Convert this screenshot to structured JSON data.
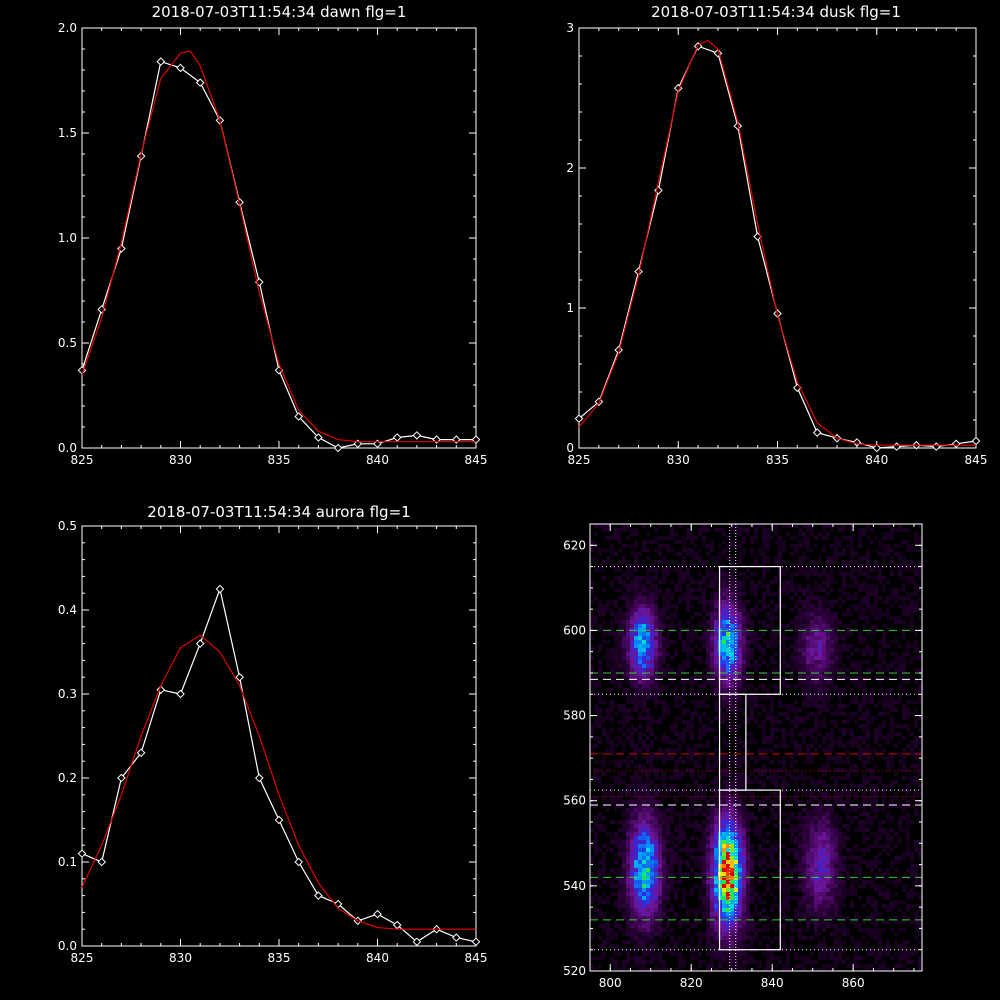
{
  "colors": {
    "background": "#000000",
    "axis": "#ffffff",
    "observed": "#ffffff",
    "fit": "#dd0000",
    "green_line": "#33cc33",
    "red_line": "#cc0000",
    "white_line": "#ffffff"
  },
  "chart_data": [
    {
      "type": "line",
      "title": "2018-07-03T11:54:34 dawn flg=1",
      "xlim": [
        825,
        845
      ],
      "ylim": [
        0,
        2.0
      ],
      "xticks": [
        "825",
        "830",
        "835",
        "840",
        "845"
      ],
      "yticks": [
        "0.0",
        "0.5",
        "1.0",
        "1.5",
        "2.0"
      ],
      "series": [
        {
          "role": "observed",
          "markers": "diamond",
          "x": [
            825,
            826,
            827,
            828,
            829,
            830,
            831,
            832,
            833,
            834,
            835,
            836,
            837,
            838,
            839,
            840,
            841,
            842,
            843,
            844,
            845
          ],
          "y": [
            0.37,
            0.66,
            0.95,
            1.39,
            1.84,
            1.81,
            1.74,
            1.56,
            1.17,
            0.79,
            0.37,
            0.15,
            0.05,
            0.0,
            0.02,
            0.02,
            0.05,
            0.06,
            0.04,
            0.04,
            0.04
          ]
        },
        {
          "role": "fit",
          "x": [
            825,
            826,
            827,
            828,
            829,
            830,
            830.5,
            831,
            832,
            833,
            834,
            835,
            836,
            837,
            838,
            839,
            840,
            841,
            842,
            843,
            844,
            845
          ],
          "y": [
            0.35,
            0.62,
            0.98,
            1.4,
            1.76,
            1.88,
            1.89,
            1.82,
            1.56,
            1.16,
            0.74,
            0.4,
            0.18,
            0.08,
            0.04,
            0.03,
            0.03,
            0.03,
            0.03,
            0.03,
            0.03,
            0.03
          ]
        }
      ]
    },
    {
      "type": "line",
      "title": "2018-07-03T11:54:34 dusk flg=1",
      "xlim": [
        825,
        845
      ],
      "ylim": [
        0,
        3
      ],
      "xticks": [
        "825",
        "830",
        "835",
        "840",
        "845"
      ],
      "yticks": [
        "0",
        "1",
        "2",
        "3"
      ],
      "series": [
        {
          "role": "observed",
          "markers": "diamond",
          "x": [
            825,
            826,
            827,
            828,
            829,
            830,
            831,
            832,
            833,
            834,
            835,
            836,
            837,
            838,
            839,
            840,
            841,
            842,
            843,
            844,
            845
          ],
          "y": [
            0.21,
            0.33,
            0.7,
            1.26,
            1.84,
            2.57,
            2.87,
            2.82,
            2.3,
            1.51,
            0.96,
            0.43,
            0.11,
            0.07,
            0.04,
            0.0,
            0.01,
            0.02,
            0.01,
            0.03,
            0.05
          ]
        },
        {
          "role": "fit",
          "x": [
            825,
            826,
            827,
            828,
            829,
            830,
            831,
            831.5,
            832,
            833,
            834,
            835,
            836,
            837,
            838,
            839,
            840,
            841,
            842,
            843,
            844,
            845
          ],
          "y": [
            0.15,
            0.32,
            0.68,
            1.23,
            1.9,
            2.55,
            2.88,
            2.91,
            2.85,
            2.33,
            1.6,
            0.95,
            0.47,
            0.18,
            0.07,
            0.03,
            0.02,
            0.02,
            0.02,
            0.02,
            0.02,
            0.02
          ]
        }
      ]
    },
    {
      "type": "line",
      "title": "2018-07-03T11:54:34 aurora flg=1",
      "xlim": [
        825,
        845
      ],
      "ylim": [
        0,
        0.5
      ],
      "xticks": [
        "825",
        "830",
        "835",
        "840",
        "845"
      ],
      "yticks": [
        "0.0",
        "0.1",
        "0.2",
        "0.3",
        "0.4",
        "0.5"
      ],
      "series": [
        {
          "role": "observed",
          "markers": "diamond",
          "x": [
            825,
            826,
            827,
            828,
            829,
            830,
            831,
            832,
            833,
            834,
            835,
            836,
            837,
            838,
            839,
            840,
            841,
            842,
            843,
            844,
            845
          ],
          "y": [
            0.11,
            0.1,
            0.2,
            0.23,
            0.305,
            0.3,
            0.36,
            0.425,
            0.32,
            0.2,
            0.15,
            0.1,
            0.06,
            0.05,
            0.03,
            0.038,
            0.025,
            0.005,
            0.02,
            0.01,
            0.005
          ]
        },
        {
          "role": "fit",
          "x": [
            825,
            826,
            827,
            828,
            829,
            830,
            831,
            832,
            833,
            834,
            835,
            836,
            837,
            838,
            839,
            840,
            841,
            842,
            843,
            844,
            845
          ],
          "y": [
            0.07,
            0.12,
            0.18,
            0.25,
            0.31,
            0.355,
            0.37,
            0.35,
            0.31,
            0.25,
            0.18,
            0.12,
            0.075,
            0.045,
            0.03,
            0.022,
            0.02,
            0.02,
            0.02,
            0.02,
            0.02
          ]
        }
      ]
    },
    {
      "type": "heatmap",
      "xlim": [
        795,
        877
      ],
      "ylim": [
        520,
        625
      ],
      "xticks": [
        800,
        820,
        840,
        860
      ],
      "yticks": [
        520,
        540,
        560,
        580,
        600,
        620
      ],
      "blobs": [
        {
          "x": 808,
          "y": 597,
          "sx": 2.3,
          "sy": 5.5,
          "amp": 0.55
        },
        {
          "x": 808.5,
          "y": 544,
          "sx": 2.5,
          "sy": 7.5,
          "amp": 0.62
        },
        {
          "x": 829,
          "y": 597,
          "sx": 2.2,
          "sy": 6,
          "amp": 0.62
        },
        {
          "x": 829,
          "y": 543,
          "sx": 2.4,
          "sy": 8,
          "amp": 1.0
        },
        {
          "x": 851,
          "y": 596,
          "sx": 2.6,
          "sy": 5.5,
          "amp": 0.22
        },
        {
          "x": 852,
          "y": 545,
          "sx": 2.6,
          "sy": 7,
          "amp": 0.28
        }
      ],
      "vertical_dotted_x": [
        829.5,
        831
      ],
      "boxes": [
        {
          "x0": 827,
          "x1": 842,
          "y0": 585,
          "y1": 615
        },
        {
          "x0": 827,
          "x1": 842,
          "y0": 525,
          "y1": 562.5
        },
        {
          "x0": 827,
          "x1": 833.5,
          "y0": 562.5,
          "y1": 585
        }
      ],
      "hlines": [
        {
          "y": 615,
          "style": "dotted",
          "color": "white"
        },
        {
          "y": 600,
          "style": "dashed",
          "color": "green"
        },
        {
          "y": 590,
          "style": "dashed",
          "color": "green"
        },
        {
          "y": 588.5,
          "style": "dashed",
          "color": "white"
        },
        {
          "y": 585,
          "style": "dotted",
          "color": "white"
        },
        {
          "y": 571,
          "style": "dashed",
          "color": "red"
        },
        {
          "y": 567,
          "style": "dotted",
          "color": "red"
        },
        {
          "y": 562.5,
          "style": "dotted",
          "color": "white"
        },
        {
          "y": 561,
          "style": "dotted",
          "color": "red"
        },
        {
          "y": 559,
          "style": "dashed",
          "color": "white"
        },
        {
          "y": 542,
          "style": "dashed",
          "color": "green"
        },
        {
          "y": 532,
          "style": "dashed",
          "color": "green"
        },
        {
          "y": 525,
          "style": "dotted",
          "color": "white"
        }
      ]
    }
  ]
}
